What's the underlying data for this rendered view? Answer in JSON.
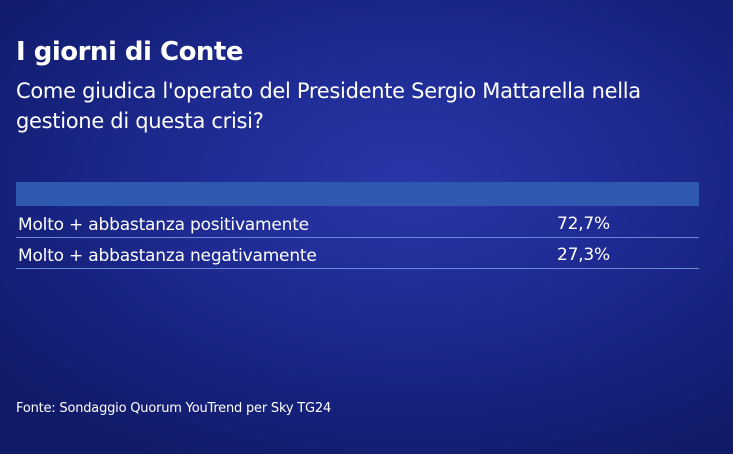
{
  "chart_data": {
    "type": "table",
    "title": "I giorni di Conte",
    "subtitle": "Come giudica l'operato del Presidente Sergio Mattarella nella gestione di questa crisi?",
    "categories": [
      "Molto + abbastanza positivamente",
      "Molto + abbastanza negativamente"
    ],
    "values": [
      72.7,
      27.3
    ],
    "display_values": [
      "72,7%",
      "27,3%"
    ],
    "source": "Fonte: Sondaggio Quorum YouTrend per Sky TG24"
  },
  "colors": {
    "background": "#1f2b93",
    "header_bar": "#2f59b1",
    "row_rule": "#6f86d6",
    "text": "#ffffff"
  }
}
